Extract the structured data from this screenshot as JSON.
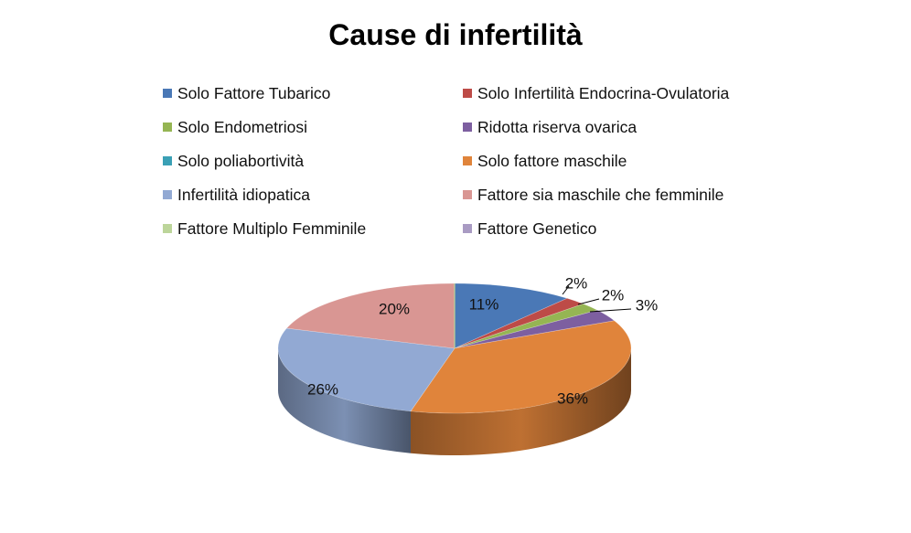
{
  "chart_data": {
    "type": "pie",
    "title": "Cause di infertilità",
    "legend_position": "top",
    "slices": [
      {
        "label": "Solo Fattore Tubarico",
        "value": 11,
        "display": "11%",
        "color": "#4a78b6"
      },
      {
        "label": "Solo Infertilità Endocrina-Ovulatoria",
        "value": 2,
        "display": "2%",
        "color": "#bd4b47"
      },
      {
        "label": "Solo Endometriosi",
        "value": 2,
        "display": "2%",
        "color": "#95b553"
      },
      {
        "label": "Ridotta riserva ovarica",
        "value": 3,
        "display": "3%",
        "color": "#7d5fa0"
      },
      {
        "label": "Solo poliabortività",
        "value": 0,
        "display": "",
        "color": "#3aa0b5"
      },
      {
        "label": "Solo fattore maschile",
        "value": 36,
        "display": "36%",
        "color": "#e0843b"
      },
      {
        "label": "Infertilità idiopatica",
        "value": 26,
        "display": "26%",
        "color": "#92a9d3"
      },
      {
        "label": "Fattore sia maschile che femminile",
        "value": 20,
        "display": "20%",
        "color": "#d99693"
      },
      {
        "label": "Fattore Multiplo Femminile",
        "value": 0,
        "display": "",
        "color": "#bcd59a"
      },
      {
        "label": "Fattore Genetico",
        "value": 0,
        "display": "",
        "color": "#a99bc3"
      }
    ]
  }
}
